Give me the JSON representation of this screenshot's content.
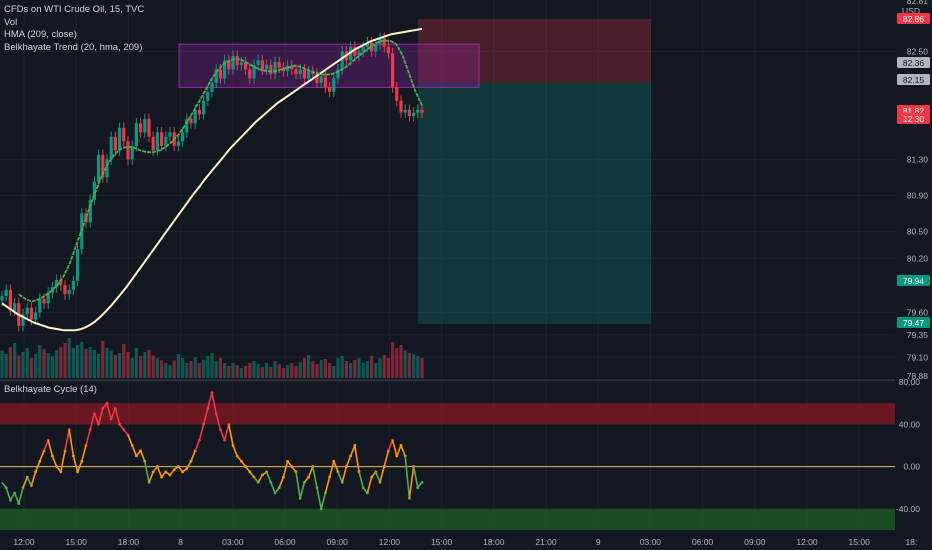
{
  "legend": {
    "symbol": "CFDs on WTI Crude Oil, 15, TVC",
    "vol": "Vol",
    "hma": "HMA (209, close)",
    "trend": "Belkhayate Trend (20, hma, 209)",
    "cycle": "Belkhayate Cycle (14)"
  },
  "currency": "USD",
  "price_labels": [
    {
      "text": "82.86",
      "color": "#f23645",
      "fg": "#ffffff"
    },
    {
      "text": "82.36",
      "color": "#b2b5be",
      "fg": "#131722"
    },
    {
      "text": "82.15",
      "color": "#b2b5be",
      "fg": "#131722"
    },
    {
      "text": "81.82",
      "color": "#f23645",
      "fg": "#ffffff"
    },
    {
      "text": "12:30",
      "color": "#f23645",
      "fg": "#ffffff"
    },
    {
      "text": "79.94",
      "color": "#089981",
      "fg": "#ffffff"
    },
    {
      "text": "79.47",
      "color": "#089981",
      "fg": "#ffffff"
    }
  ],
  "colors": {
    "bg": "#131722",
    "grid": "#1e222d",
    "text": "#b2b5be",
    "up": "#089981",
    "down": "#f23645",
    "hma": "#fff3c2",
    "trend": "#4caf50",
    "box": "#9c27b0",
    "zero": "#e0c040"
  },
  "chart_data": [
    {
      "type": "candlestick",
      "title": "CFDs on WTI Crude Oil, 15, TVC",
      "y_ticks": [
        82.5,
        81.3,
        80.9,
        80.5,
        80.2,
        79.6,
        79.35,
        79.1
      ],
      "y_tick_labels": [
        "82.50",
        "81.30",
        "80.90",
        "80.50",
        "80.20",
        "79.60",
        "79.35",
        "79.10"
      ],
      "y_partial_ticks": [
        "82.81",
        "78.88"
      ],
      "ylim": [
        78.87,
        82.96
      ],
      "x_tick_labels": [
        "12:00",
        "15:00",
        "18:00",
        "8",
        "03:00",
        "06:00",
        "09:00",
        "12:00",
        "15:00",
        "18:00",
        "21:00",
        "9",
        "03:00",
        "06:00",
        "09:00",
        "12:00",
        "15:00",
        "18:"
      ],
      "n_bars": 101,
      "close": [
        79.78,
        79.85,
        79.62,
        79.7,
        79.45,
        79.58,
        79.65,
        79.52,
        79.6,
        79.75,
        79.7,
        79.82,
        79.88,
        79.96,
        79.9,
        79.8,
        79.85,
        79.95,
        80.3,
        80.7,
        80.6,
        80.85,
        81.05,
        81.35,
        81.1,
        81.3,
        81.55,
        81.4,
        81.65,
        81.5,
        81.3,
        81.45,
        81.7,
        81.6,
        81.75,
        81.55,
        81.4,
        81.6,
        81.45,
        81.55,
        81.6,
        81.45,
        81.5,
        81.6,
        81.75,
        81.7,
        81.85,
        81.8,
        81.95,
        82.05,
        82.15,
        82.3,
        82.2,
        82.4,
        82.3,
        82.45,
        82.35,
        82.38,
        82.3,
        82.2,
        82.35,
        82.4,
        82.3,
        82.35,
        82.25,
        82.38,
        82.32,
        82.28,
        82.34,
        82.3,
        82.25,
        82.3,
        82.2,
        82.28,
        82.25,
        82.15,
        82.22,
        82.1,
        82.05,
        82.2,
        82.3,
        82.5,
        82.4,
        82.55,
        82.45,
        82.5,
        82.55,
        82.6,
        82.5,
        82.58,
        82.65,
        82.55,
        82.48,
        82.1,
        81.95,
        81.82,
        81.85,
        81.78,
        81.82,
        81.85,
        81.82
      ],
      "volume": [
        0.55,
        0.48,
        0.62,
        0.7,
        0.45,
        0.52,
        0.6,
        0.4,
        0.48,
        0.66,
        0.58,
        0.5,
        0.44,
        0.55,
        0.62,
        0.7,
        0.8,
        0.6,
        0.66,
        0.72,
        0.58,
        0.62,
        0.56,
        0.48,
        0.74,
        0.6,
        0.55,
        0.46,
        0.5,
        0.68,
        0.52,
        0.4,
        0.6,
        0.44,
        0.52,
        0.56,
        0.45,
        0.4,
        0.35,
        0.3,
        0.26,
        0.35,
        0.48,
        0.4,
        0.3,
        0.34,
        0.42,
        0.3,
        0.36,
        0.44,
        0.5,
        0.34,
        0.4,
        0.3,
        0.24,
        0.3,
        0.26,
        0.2,
        0.24,
        0.3,
        0.34,
        0.28,
        0.22,
        0.3,
        0.22,
        0.34,
        0.28,
        0.2,
        0.26,
        0.3,
        0.24,
        0.32,
        0.4,
        0.46,
        0.34,
        0.28,
        0.36,
        0.38,
        0.3,
        0.24,
        0.4,
        0.44,
        0.34,
        0.3,
        0.36,
        0.4,
        0.3,
        0.34,
        0.44,
        0.3,
        0.4,
        0.46,
        0.4,
        0.72,
        0.6,
        0.66,
        0.55,
        0.5,
        0.48,
        0.44,
        0.4
      ],
      "hma": [
        79.7,
        79.66,
        79.62,
        79.58,
        79.55,
        79.52,
        79.49,
        79.47,
        79.45,
        79.43,
        79.42,
        79.41,
        79.4,
        79.4,
        79.4,
        79.41,
        79.43,
        79.46,
        79.5,
        79.55,
        79.61,
        79.67,
        79.74,
        79.81,
        79.88,
        79.96,
        80.04,
        80.12,
        80.2,
        80.28,
        80.36,
        80.44,
        80.52,
        80.6,
        80.68,
        80.76,
        80.84,
        80.92,
        80.99,
        81.07,
        81.14,
        81.21,
        81.28,
        81.35,
        81.42,
        81.48,
        81.54,
        81.6,
        81.66,
        81.72,
        81.77,
        81.82,
        81.87,
        81.92,
        81.96,
        82.0,
        82.04,
        82.08,
        82.12,
        82.16,
        82.2,
        82.24,
        82.28,
        82.32,
        82.36,
        82.4,
        82.44,
        82.48,
        82.52,
        82.55,
        82.58,
        82.61,
        82.63,
        82.65,
        82.67,
        82.69,
        82.7,
        82.71,
        82.72,
        82.73,
        82.74,
        82.75
      ],
      "trend_line": [
        79.8,
        79.75,
        79.72,
        79.74,
        79.78,
        79.83,
        79.9,
        80.0,
        80.15,
        80.35,
        80.55,
        80.75,
        80.95,
        81.12,
        81.26,
        81.36,
        81.42,
        81.44,
        81.43,
        81.4,
        81.38,
        81.38,
        81.4,
        81.44,
        81.5,
        81.58,
        81.68,
        81.8,
        81.92,
        82.05,
        82.18,
        82.28,
        82.36,
        82.4,
        82.42,
        82.4,
        82.36,
        82.32,
        82.29,
        82.28,
        82.28,
        82.3,
        82.32,
        82.34,
        82.33,
        82.3,
        82.27,
        82.25,
        82.24,
        82.25,
        82.28,
        82.32,
        82.38,
        82.44,
        82.5,
        82.55,
        82.6,
        82.62,
        82.62,
        82.58,
        82.45,
        82.25,
        82.05,
        81.9
      ],
      "box": {
        "price_top": 82.58,
        "price_bottom": 82.1
      },
      "position": {
        "entry": 82.15,
        "stop": 82.86,
        "target": 79.47
      }
    },
    {
      "type": "line",
      "title": "Belkhayate Cycle (14)",
      "y_tick_labels": [
        "80.00",
        "40.00",
        "0.00",
        "-40.00"
      ],
      "ylim": [
        -60,
        80
      ],
      "bands": [
        {
          "from": 40,
          "to": 60,
          "color": "#801922"
        },
        {
          "from": -40,
          "to": -60,
          "color": "#1b5e20"
        }
      ],
      "values": [
        -15,
        -20,
        -32,
        -25,
        -35,
        -20,
        -10,
        -18,
        -5,
        5,
        15,
        25,
        10,
        0,
        -5,
        15,
        35,
        10,
        -5,
        5,
        20,
        35,
        50,
        40,
        55,
        60,
        45,
        55,
        40,
        35,
        30,
        20,
        10,
        15,
        5,
        -15,
        -5,
        0,
        -10,
        -5,
        -8,
        -3,
        0,
        -5,
        -2,
        5,
        15,
        25,
        40,
        55,
        70,
        50,
        35,
        25,
        40,
        20,
        10,
        5,
        0,
        -5,
        -10,
        -15,
        -8,
        -5,
        -15,
        -25,
        -20,
        -10,
        5,
        0,
        -5,
        -30,
        -15,
        -10,
        0,
        -20,
        -40,
        -25,
        -10,
        5,
        -5,
        -15,
        0,
        10,
        20,
        -5,
        -20,
        -25,
        -10,
        -5,
        -15,
        0,
        15,
        25,
        10,
        20,
        10,
        -30,
        0,
        -20,
        -15
      ]
    }
  ]
}
